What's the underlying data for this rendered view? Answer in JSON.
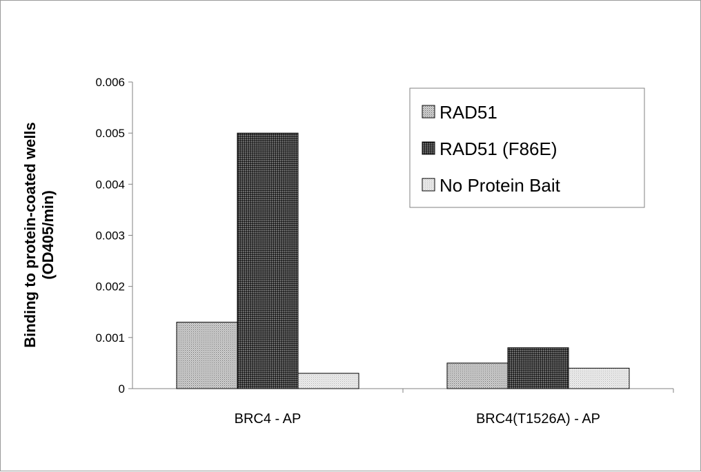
{
  "chart_data": {
    "type": "bar",
    "title": "",
    "ylabel_lines": [
      "Binding to protein-coated wells",
      "(OD405/min)"
    ],
    "xlabel": "",
    "categories": [
      "BRC4 - AP",
      "BRC4(T1526A) - AP"
    ],
    "series": [
      {
        "name": "RAD51",
        "values": [
          0.0013,
          0.0005
        ],
        "fill": "light-stipple"
      },
      {
        "name": "RAD51 (F86E)",
        "values": [
          0.005,
          0.0008
        ],
        "fill": "dark-crosshatch"
      },
      {
        "name": "No Protein Bait",
        "values": [
          0.0003,
          0.0004
        ],
        "fill": "very-light-stipple"
      }
    ],
    "ylim": [
      0,
      0.006
    ],
    "yticks": [
      "0",
      "0.001",
      "0.002",
      "0.003",
      "0.004",
      "0.005",
      "0.006"
    ],
    "grid": false,
    "legend_position": "top-right"
  }
}
